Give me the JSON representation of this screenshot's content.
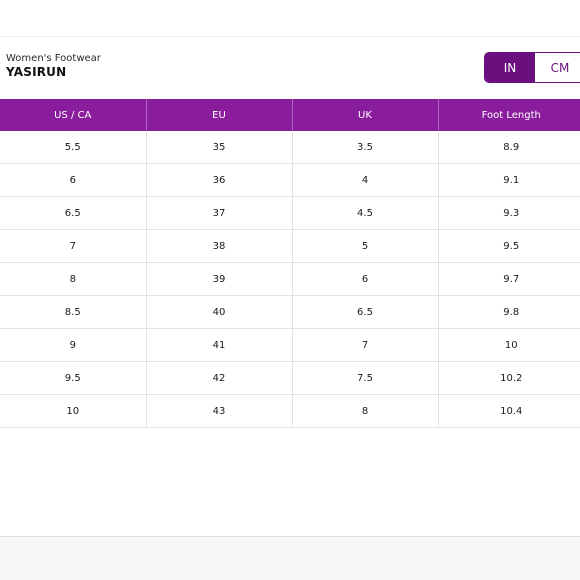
{
  "product": {
    "category": "Women's Footwear",
    "name": "YASIRUN"
  },
  "units": {
    "options": [
      "IN",
      "CM"
    ],
    "selected": "IN"
  },
  "colors": {
    "accent": "#6b0f7f",
    "header": "#8a1d9c"
  },
  "table": {
    "columns": [
      "US / CA",
      "EU",
      "UK",
      "Foot Length"
    ],
    "rows": [
      [
        "5.5",
        "35",
        "3.5",
        "8.9"
      ],
      [
        "6",
        "36",
        "4",
        "9.1"
      ],
      [
        "6.5",
        "37",
        "4.5",
        "9.3"
      ],
      [
        "7",
        "38",
        "5",
        "9.5"
      ],
      [
        "8",
        "39",
        "6",
        "9.7"
      ],
      [
        "8.5",
        "40",
        "6.5",
        "9.8"
      ],
      [
        "9",
        "41",
        "7",
        "10"
      ],
      [
        "9.5",
        "42",
        "7.5",
        "10.2"
      ],
      [
        "10",
        "43",
        "8",
        "10.4"
      ]
    ]
  }
}
